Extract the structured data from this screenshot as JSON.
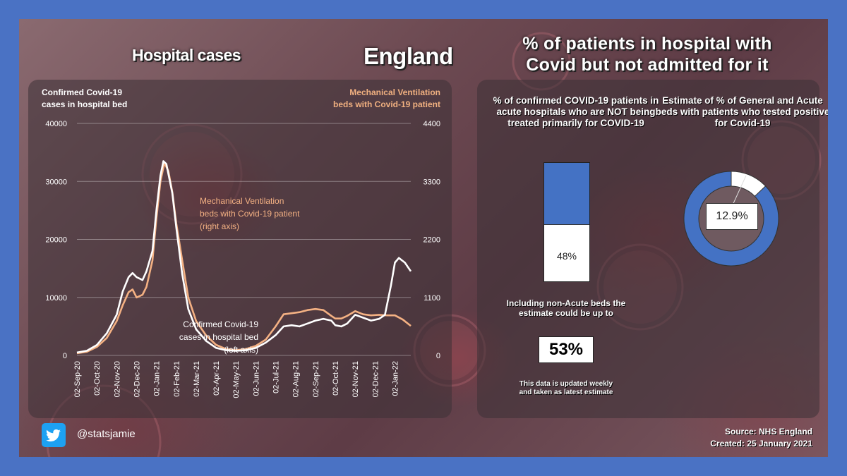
{
  "titles": {
    "hospital_cases": "Hospital cases",
    "england": "England",
    "pct_line1": "% of patients in hospital with",
    "pct_line2": "Covid but not admitted for it"
  },
  "chart_data": {
    "type": "line",
    "left_axis_label_line1": "Confirmed Covid-19",
    "left_axis_label_line2": "cases in hospital bed",
    "right_axis_label_line1": "Mechanical Ventilation",
    "right_axis_label_line2": "beds with Covid-19 patient",
    "y_left_ticks": [
      "0",
      "10000",
      "20000",
      "30000",
      "40000"
    ],
    "y_right_ticks": [
      "0",
      "1100",
      "2200",
      "3300",
      "4400"
    ],
    "ylim_left": [
      0,
      40000
    ],
    "ylim_right": [
      0,
      4400
    ],
    "x_ticks": [
      "02-Sep-20",
      "02-Oct-20",
      "02-Nov-20",
      "02-Dec-20",
      "02-Jan-21",
      "02-Feb-21",
      "02-Mar-21",
      "02-Apr-21",
      "02-May-21",
      "02-Jun-21",
      "02-Jul-21",
      "02-Aug-21",
      "02-Sep-21",
      "02-Oct-21",
      "02-Nov-21",
      "02-Dec-21",
      "02-Jan-22"
    ],
    "x_months": [
      0,
      16.8
    ],
    "annot_vent_line1": "Mechanical Ventilation",
    "annot_vent_line2": "beds with Covid-19 patient",
    "annot_vent_line3": "(right axis)",
    "annot_cases_line1": "Confirmed Covid-19",
    "annot_cases_line2": "cases in hospital bed",
    "annot_cases_line3": "(left axis)",
    "series": [
      {
        "name": "Confirmed Covid-19 cases in hospital bed",
        "axis": "left",
        "color": "#ffffff",
        "points": [
          [
            0,
            500
          ],
          [
            0.5,
            800
          ],
          [
            1,
            1800
          ],
          [
            1.5,
            3800
          ],
          [
            2,
            7000
          ],
          [
            2.3,
            11000
          ],
          [
            2.6,
            13500
          ],
          [
            2.8,
            14200
          ],
          [
            3.0,
            13500
          ],
          [
            3.3,
            13000
          ],
          [
            3.5,
            14500
          ],
          [
            3.8,
            18000
          ],
          [
            4.0,
            25000
          ],
          [
            4.2,
            31000
          ],
          [
            4.35,
            33500
          ],
          [
            4.5,
            33000
          ],
          [
            4.8,
            28000
          ],
          [
            5.0,
            22000
          ],
          [
            5.3,
            14000
          ],
          [
            5.6,
            8000
          ],
          [
            6.0,
            4500
          ],
          [
            6.5,
            2500
          ],
          [
            7.0,
            1300
          ],
          [
            7.5,
            900
          ],
          [
            8.0,
            800
          ],
          [
            8.5,
            900
          ],
          [
            9.0,
            1300
          ],
          [
            9.5,
            2200
          ],
          [
            10.0,
            3500
          ],
          [
            10.4,
            5000
          ],
          [
            10.8,
            5200
          ],
          [
            11.2,
            5000
          ],
          [
            11.6,
            5500
          ],
          [
            12.0,
            6000
          ],
          [
            12.4,
            6300
          ],
          [
            12.8,
            6000
          ],
          [
            13.0,
            5200
          ],
          [
            13.3,
            5000
          ],
          [
            13.6,
            5500
          ],
          [
            14.0,
            7000
          ],
          [
            14.4,
            6500
          ],
          [
            14.8,
            6000
          ],
          [
            15.2,
            6300
          ],
          [
            15.5,
            7000
          ],
          [
            15.8,
            12000
          ],
          [
            16.0,
            16000
          ],
          [
            16.2,
            16800
          ],
          [
            16.5,
            16000
          ],
          [
            16.8,
            14500
          ]
        ]
      },
      {
        "name": "Mechanical Ventilation beds with Covid-19 patient",
        "axis": "right",
        "color": "#f4b183",
        "points": [
          [
            0,
            40
          ],
          [
            0.5,
            70
          ],
          [
            1,
            160
          ],
          [
            1.5,
            330
          ],
          [
            2,
            650
          ],
          [
            2.3,
            950
          ],
          [
            2.6,
            1200
          ],
          [
            2.8,
            1250
          ],
          [
            3.0,
            1100
          ],
          [
            3.3,
            1150
          ],
          [
            3.5,
            1300
          ],
          [
            3.8,
            1800
          ],
          [
            4.0,
            2600
          ],
          [
            4.2,
            3300
          ],
          [
            4.4,
            3650
          ],
          [
            4.6,
            3500
          ],
          [
            4.8,
            3100
          ],
          [
            5.0,
            2500
          ],
          [
            5.3,
            1800
          ],
          [
            5.6,
            1100
          ],
          [
            6.0,
            650
          ],
          [
            6.5,
            380
          ],
          [
            7.0,
            200
          ],
          [
            7.5,
            120
          ],
          [
            8.0,
            100
          ],
          [
            8.5,
            120
          ],
          [
            9.0,
            180
          ],
          [
            9.5,
            300
          ],
          [
            10.0,
            550
          ],
          [
            10.4,
            780
          ],
          [
            10.8,
            800
          ],
          [
            11.2,
            820
          ],
          [
            11.6,
            860
          ],
          [
            12.0,
            880
          ],
          [
            12.4,
            860
          ],
          [
            12.8,
            750
          ],
          [
            13.0,
            700
          ],
          [
            13.3,
            700
          ],
          [
            13.6,
            750
          ],
          [
            14.0,
            840
          ],
          [
            14.4,
            780
          ],
          [
            14.8,
            760
          ],
          [
            15.2,
            770
          ],
          [
            15.6,
            760
          ],
          [
            16.0,
            760
          ],
          [
            16.4,
            680
          ],
          [
            16.8,
            560
          ]
        ]
      }
    ]
  },
  "bar": {
    "title": "% of confirmed COVID-19 patients in acute hospitals who are NOT being treated primarily for COVID-19",
    "value_label": "48%",
    "value": 48,
    "fill_color": "#4472c4"
  },
  "including_text": "Including non-Acute beds the estimate could be up to",
  "big_value": "53%",
  "note": "This data is updated weekly and taken as latest estimate",
  "donut": {
    "title": "Estimate of % of General and Acute beds with patients who tested positive for Covid-19",
    "value_label": "12.9%",
    "value": 12.9,
    "fill_color": "#4472c4"
  },
  "twitter_handle": "@statsjamie",
  "footer": {
    "source": "Source: NHS England",
    "created": "Created: 25 January 2021"
  }
}
